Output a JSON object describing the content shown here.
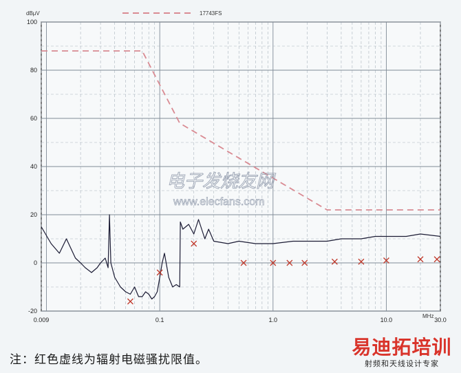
{
  "chart_data": {
    "type": "line",
    "title": "",
    "xlabel": "",
    "ylabel": "",
    "x_unit": "MHz",
    "y_unit": "dBμV",
    "x_scale": "log",
    "xlim": [
      0.009,
      30.0
    ],
    "ylim": [
      -20,
      100
    ],
    "x_tick_labels": [
      {
        "value": 0.009,
        "label": "0.009"
      },
      {
        "value": 0.1,
        "label": "0.1"
      },
      {
        "value": 1.0,
        "label": "1.0"
      },
      {
        "value": 10.0,
        "label": "10.0"
      },
      {
        "value": 30.0,
        "label": "30.0"
      }
    ],
    "y_tick_labels": [
      {
        "value": 100,
        "label": "100"
      },
      {
        "value": 80,
        "label": "80"
      },
      {
        "value": 60,
        "label": "60"
      },
      {
        "value": 40,
        "label": "40"
      },
      {
        "value": 20,
        "label": "20"
      },
      {
        "value": 0,
        "label": "0"
      },
      {
        "value": -20,
        "label": "-20"
      }
    ],
    "grid": true,
    "legend": {
      "placement": "top",
      "entries": [
        "17743FS"
      ]
    },
    "series": [
      {
        "name": "17743FS",
        "style": "dashed",
        "color": "#d98a92",
        "x": [
          0.009,
          0.07,
          0.15,
          3.0,
          30.0
        ],
        "y": [
          88,
          88,
          58,
          22,
          22
        ]
      },
      {
        "name": "",
        "style": "solid",
        "color": "#1a1a33",
        "x": [
          0.009,
          0.011,
          0.013,
          0.015,
          0.018,
          0.02,
          0.022,
          0.025,
          0.028,
          0.03,
          0.033,
          0.035,
          0.036,
          0.037,
          0.04,
          0.045,
          0.05,
          0.055,
          0.06,
          0.065,
          0.07,
          0.075,
          0.08,
          0.085,
          0.09,
          0.095,
          0.1,
          0.105,
          0.11,
          0.12,
          0.13,
          0.14,
          0.15,
          0.152,
          0.16,
          0.18,
          0.2,
          0.22,
          0.25,
          0.27,
          0.3,
          0.4,
          0.5,
          0.7,
          1.0,
          1.5,
          2.0,
          3.0,
          4.0,
          6.0,
          8.0,
          10.0,
          15.0,
          20.0,
          30.0
        ],
        "y": [
          15,
          8,
          4,
          10,
          2,
          0,
          -2,
          -4,
          -2,
          0,
          2,
          -2,
          20,
          0,
          -6,
          -10,
          -12,
          -13,
          -10,
          -14,
          -14,
          -12,
          -13,
          -15,
          -14,
          -12,
          -6,
          0,
          4,
          -6,
          -10,
          -9,
          -10,
          17,
          14,
          16,
          12,
          18,
          10,
          14,
          9,
          8,
          9,
          8,
          8,
          9,
          9,
          9,
          10,
          10,
          11,
          11,
          11,
          12,
          11
        ]
      },
      {
        "name": "",
        "style": "markers",
        "marker": "x",
        "color": "#c0392b",
        "x": [
          0.055,
          0.1,
          0.2,
          0.55,
          1.0,
          1.4,
          1.9,
          3.5,
          6.0,
          10.0,
          20.0,
          28.0
        ],
        "y": [
          -16,
          -4,
          8,
          0,
          0,
          0,
          0,
          0.5,
          0.5,
          1,
          1.5,
          1.5
        ]
      }
    ]
  },
  "watermark": {
    "chinese": "电子发烧友网",
    "url": "www.elecfans.com"
  },
  "note": "注：红色虚线为辐射电磁骚扰限值。",
  "brand": {
    "logo": "易迪拓培训",
    "tagline": "射频和天线设计专家"
  }
}
